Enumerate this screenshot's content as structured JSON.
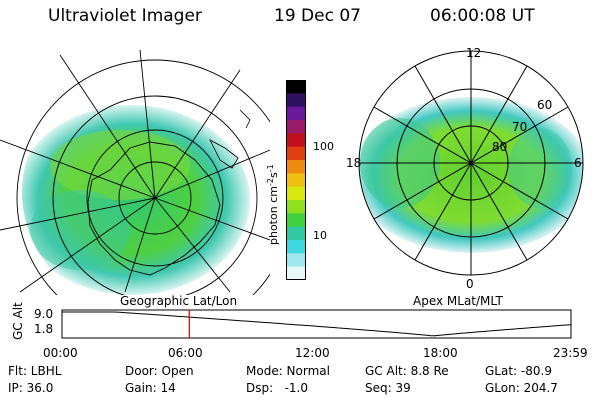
{
  "header": {
    "instrument": "Ultraviolet Imager",
    "date": "19 Dec 07",
    "time": "06:00:08 UT"
  },
  "left_map": {
    "label": "Geographic Lat/Lon"
  },
  "right_map": {
    "label": "Apex MLat/MLT",
    "mlt_top": "12",
    "mlt_left": "18",
    "mlt_right": "6",
    "mlt_bottom": "0",
    "lat_60": "60",
    "lat_70": "70",
    "lat_80": "80"
  },
  "colorbar": {
    "unit_label": "photon cm",
    "unit_exp1": "-2",
    "unit_mid": "s",
    "unit_exp2": "-1",
    "tick_100": "100",
    "tick_10": "10",
    "colors": [
      "#000000",
      "#301060",
      "#6a1a9a",
      "#9a1a6a",
      "#c01020",
      "#e04010",
      "#f08a10",
      "#f0c010",
      "#d8e810",
      "#90e020",
      "#40d040",
      "#30c8a0",
      "#40d8e0",
      "#a0e8f0",
      "#e8f8f8"
    ]
  },
  "altitude_strip": {
    "axis_label": "GC Alt",
    "ytick_top": "9.0",
    "ytick_bottom": "1.8",
    "xticks": [
      "00:00",
      "06:00",
      "12:00",
      "18:00",
      "23:59"
    ],
    "marker_hour": 6.0,
    "marker_color": "#c00000"
  },
  "status": {
    "flt": "Flt: LBHL",
    "ip": "IP: 36.0",
    "door": "Door: Open",
    "gain": "Gain: 14",
    "mode": "Mode: Normal",
    "dsp": "Dsp:   -1.0",
    "gc_alt": "GC Alt: 8.8 Re",
    "seq": "Seq: 39",
    "glat": "GLat: -80.9",
    "glon": "GLon: 204.7"
  }
}
